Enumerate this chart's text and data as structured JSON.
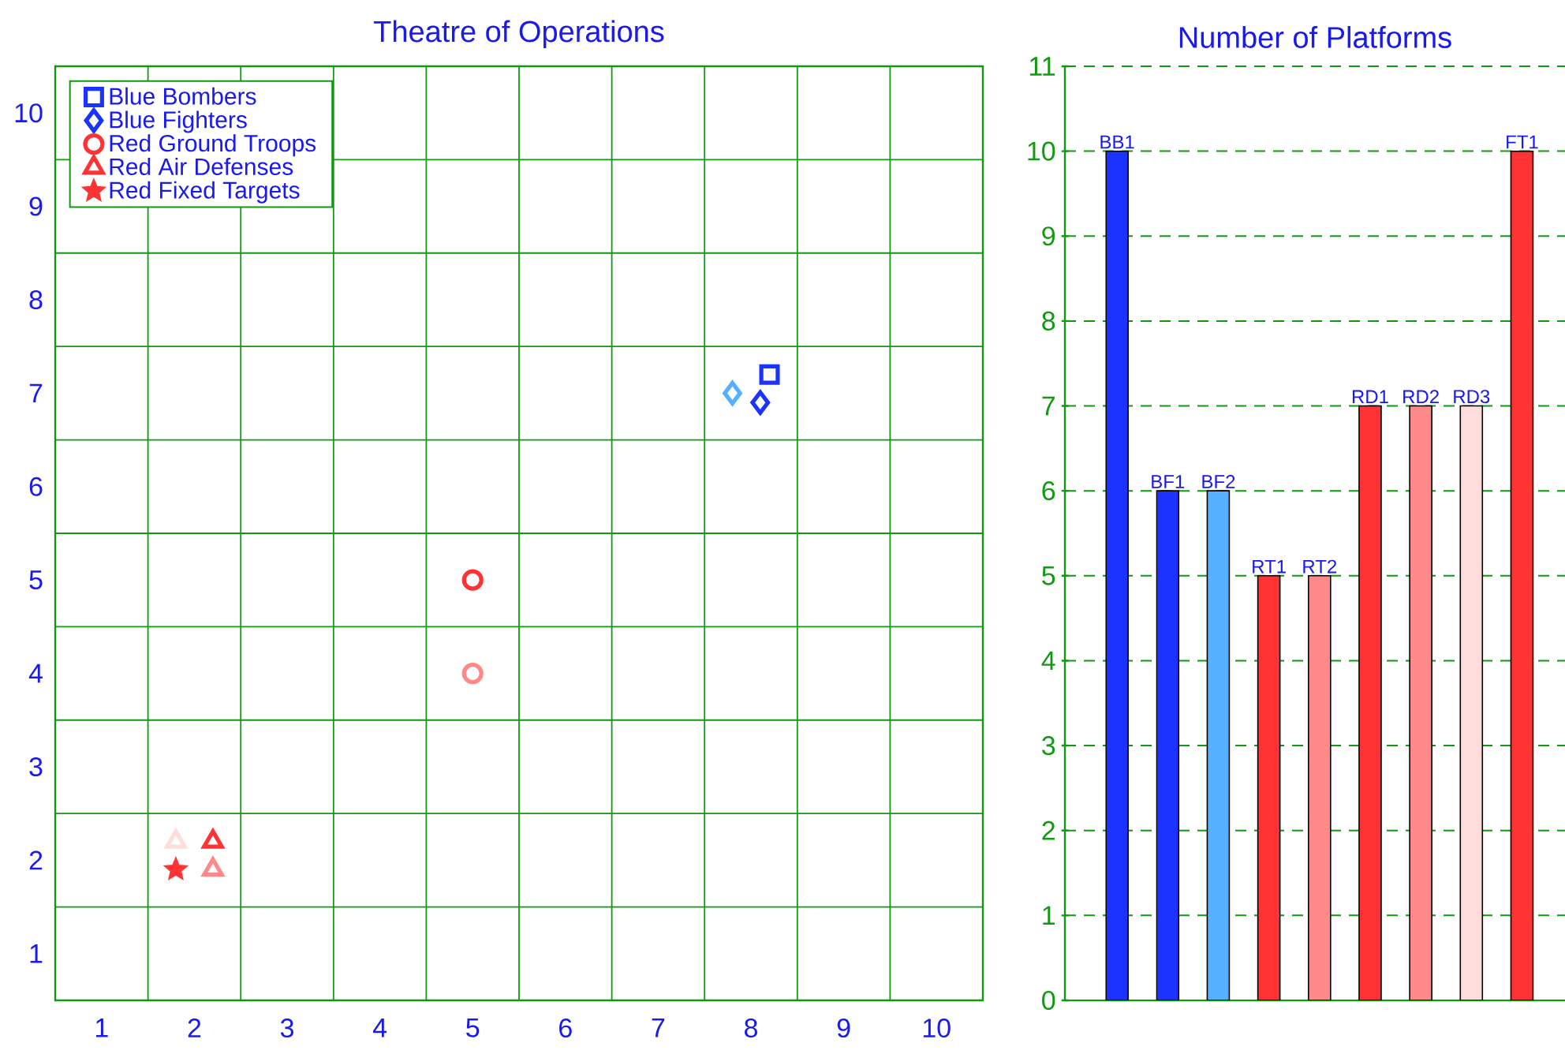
{
  "chart_data": [
    {
      "type": "scatter",
      "title": "Theatre of Operations",
      "xlim": [
        0.5,
        10.5
      ],
      "ylim": [
        0.5,
        10.5
      ],
      "xticks": [
        {
          "value": 0.5,
          "label": null
        },
        1,
        {
          "value": 1.5,
          "label": null
        },
        2,
        {
          "value": 2.5,
          "label": null
        },
        3,
        {
          "value": 3.5,
          "label": null
        },
        4,
        {
          "value": 4.5,
          "label": null
        },
        5,
        {
          "value": 5.5,
          "label": null
        },
        6,
        {
          "value": 6.5,
          "label": null
        },
        7,
        {
          "value": 7.5,
          "label": null
        },
        8,
        {
          "value": 8.5,
          "label": null
        },
        9,
        {
          "value": 9.5,
          "label": null
        },
        10,
        {
          "value": 10.5,
          "label": null
        }
      ],
      "yticks": [
        {
          "value": 0.5,
          "label": null
        },
        1,
        {
          "value": 1.5,
          "label": null
        },
        2,
        {
          "value": 2.5,
          "label": null
        },
        3,
        {
          "value": 3.5,
          "label": null
        },
        4,
        {
          "value": 4.5,
          "label": null
        },
        5,
        {
          "value": 5.5,
          "label": null
        },
        6,
        {
          "value": 6.5,
          "label": null
        },
        7,
        {
          "value": 7.5,
          "label": null
        },
        8,
        {
          "value": 8.5,
          "label": null
        },
        9,
        {
          "value": 9.5,
          "label": null
        },
        10,
        {
          "value": 10.5,
          "label": null
        }
      ],
      "grid": true,
      "legend": "top left",
      "series": [
        {
          "name": "Blue Bombers",
          "marker": "square",
          "color": "#1a33ff",
          "colors": [
            "#1a33ff"
          ],
          "x": [
            8.2
          ],
          "values": [
            7.2
          ]
        },
        {
          "name": "Blue Fighters",
          "marker": "diamond",
          "color": "#1a33ff",
          "colors": [
            "#1a33ff",
            "#55b0ff"
          ],
          "x": [
            8.1,
            7.8
          ],
          "values": [
            6.9,
            7.0
          ]
        },
        {
          "name": "Red Ground Troops",
          "marker": "circle",
          "color": "#ff3333",
          "colors": [
            "#ff3333",
            "#ff8888"
          ],
          "x": [
            5.0,
            5.0
          ],
          "values": [
            5.0,
            4.0
          ]
        },
        {
          "name": "Red Air Defenses",
          "marker": "triangle",
          "color": "#ff3333",
          "colors": [
            "#ff3333",
            "#ff8888",
            "#ffdddd"
          ],
          "x": [
            2.2,
            2.2,
            1.8
          ],
          "values": [
            2.2,
            1.9,
            2.2
          ]
        },
        {
          "name": "Red Fixed Targets",
          "marker": "star",
          "color": "#ff3333",
          "colors": [
            "#ff3333"
          ],
          "x": [
            1.8
          ],
          "values": [
            1.9
          ]
        }
      ]
    },
    {
      "type": "bar",
      "title": "Number of Platforms",
      "categories": [
        "BB1",
        "BF1",
        "BF2",
        "RT1",
        "RT2",
        "RD1",
        "RD2",
        "RD3",
        "FT1"
      ],
      "values": [
        10,
        6,
        6,
        5,
        5,
        7,
        7,
        7,
        10
      ],
      "colors": [
        "#1a33ff",
        "#1a33ff",
        "#55b0ff",
        "#ff3333",
        "#ff8888",
        "#ff3333",
        "#ff8888",
        "#ffdddd",
        "#ff3333"
      ],
      "ylim": [
        0,
        11
      ],
      "yticks": [
        0,
        1,
        2,
        3,
        4,
        5,
        6,
        7,
        8,
        9,
        10,
        11
      ],
      "grid": "y",
      "tick_labels": "y"
    }
  ]
}
